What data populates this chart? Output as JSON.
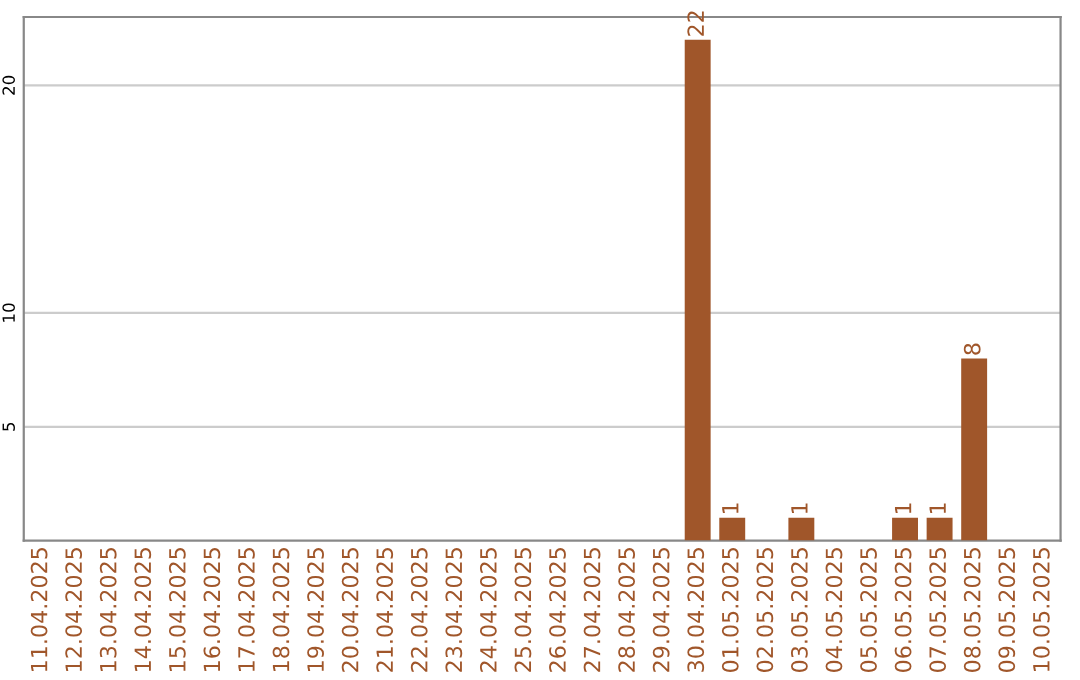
{
  "chart_data": {
    "type": "bar",
    "categories": [
      "11.04.2025",
      "12.04.2025",
      "13.04.2025",
      "14.04.2025",
      "15.04.2025",
      "16.04.2025",
      "17.04.2025",
      "18.04.2025",
      "19.04.2025",
      "20.04.2025",
      "21.04.2025",
      "22.04.2025",
      "23.04.2025",
      "24.04.2025",
      "25.04.2025",
      "26.04.2025",
      "27.04.2025",
      "28.04.2025",
      "29.04.2025",
      "30.04.2025",
      "01.05.2025",
      "02.05.2025",
      "03.05.2025",
      "04.05.2025",
      "05.05.2025",
      "06.05.2025",
      "07.05.2025",
      "08.05.2025",
      "09.05.2025",
      "10.05.2025"
    ],
    "values": [
      0,
      0,
      0,
      0,
      0,
      0,
      0,
      0,
      0,
      0,
      0,
      0,
      0,
      0,
      0,
      0,
      0,
      0,
      0,
      22,
      1,
      0,
      1,
      0,
      0,
      1,
      1,
      8,
      0,
      0
    ],
    "value_labels": [
      null,
      null,
      null,
      null,
      null,
      null,
      null,
      null,
      null,
      null,
      null,
      null,
      null,
      null,
      null,
      null,
      null,
      null,
      null,
      "22",
      "1",
      null,
      "1",
      null,
      null,
      "1",
      "1",
      "8",
      null,
      null
    ],
    "color": "#a0562a",
    "ylim": [
      0,
      23
    ],
    "yticks": [
      5,
      10,
      20
    ],
    "grid": "y",
    "legend": false
  }
}
